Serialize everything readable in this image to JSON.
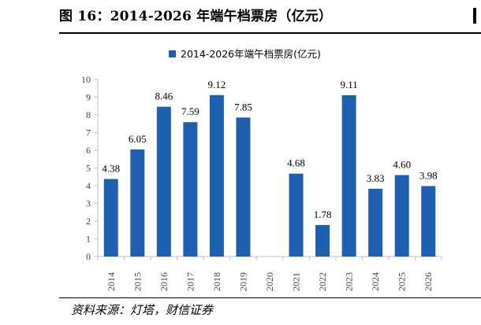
{
  "figure": {
    "title": "图 16：2014-2026 年端午档票房（亿元）",
    "source": "资料来源：灯塔，财信证券"
  },
  "colors": {
    "bar": "#1f5fb0",
    "axis": "#bfbfbf",
    "tick_text": "#404040"
  },
  "chart_data": {
    "type": "bar",
    "categories": [
      "2014",
      "2015",
      "2016",
      "2017",
      "2018",
      "2019",
      "2020",
      "2021",
      "2022",
      "2023",
      "2024",
      "2025",
      "2026"
    ],
    "series": [
      {
        "name": "2014-2026年端午档票房(亿元)",
        "values": [
          4.38,
          6.05,
          8.46,
          7.59,
          9.12,
          7.85,
          null,
          4.68,
          1.78,
          9.11,
          3.83,
          4.6,
          3.98
        ],
        "labels": [
          "4.38",
          "6.05",
          "8.46",
          "7.59",
          "9.12",
          "7.85",
          "",
          "4.68",
          "1.78",
          "9.11",
          "3.83",
          "4.60",
          "3.98"
        ]
      }
    ],
    "ylim": [
      0,
      10
    ],
    "yticks": [
      0,
      1,
      2,
      3,
      4,
      5,
      6,
      7,
      8,
      9,
      10
    ],
    "grid": false,
    "legend_position": "top-center",
    "xlabel": "",
    "ylabel": ""
  }
}
